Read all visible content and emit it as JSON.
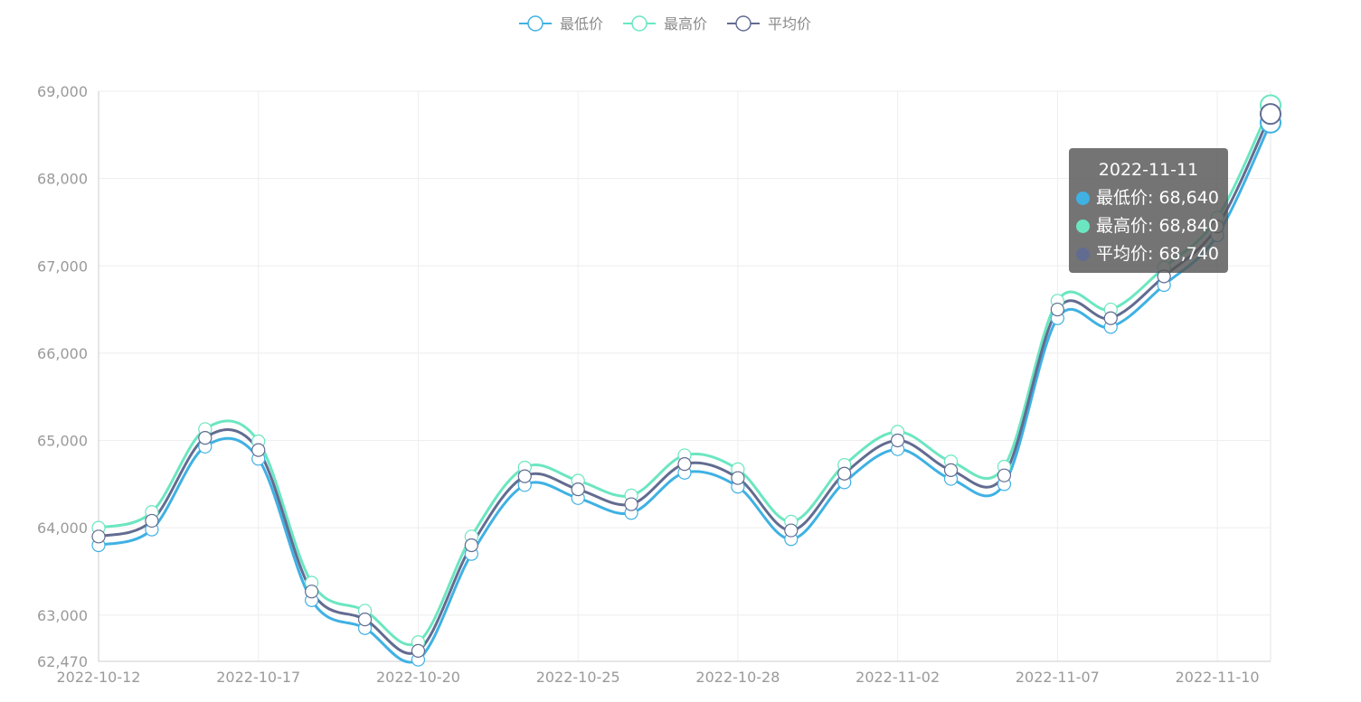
{
  "colors": {
    "min": "#3fb1e3",
    "max": "#6be6c1",
    "avg": "#626c91",
    "grid": "#eeeeee",
    "axis": "#cccccc",
    "text": "#999999"
  },
  "legend": [
    {
      "key": "min",
      "label": "最低价",
      "color": "#3fb1e3"
    },
    {
      "key": "max",
      "label": "最高价",
      "color": "#6be6c1"
    },
    {
      "key": "avg",
      "label": "平均价",
      "color": "#626c91"
    }
  ],
  "tooltip": {
    "title": "2022-11-11",
    "rows": [
      {
        "label": "最低价",
        "value": "68,640",
        "color": "#3fb1e3",
        "text": "最低价: 68,640"
      },
      {
        "label": "最高价",
        "value": "68,840",
        "color": "#6be6c1",
        "text": "最高价: 68,840"
      },
      {
        "label": "平均价",
        "value": "68,740",
        "color": "#626c91",
        "text": "平均价: 68,740"
      }
    ]
  },
  "chart_data": {
    "type": "line",
    "smooth": true,
    "title": "",
    "xlabel": "",
    "ylabel": "",
    "legend_position": "top-center",
    "grid": true,
    "ylim": [
      62470,
      69000
    ],
    "y_ticks": [
      "62,470",
      "63,000",
      "64,000",
      "65,000",
      "66,000",
      "67,000",
      "68,000",
      "69,000"
    ],
    "y_tick_values": [
      62470,
      63000,
      64000,
      65000,
      66000,
      67000,
      68000,
      69000
    ],
    "x_tick_labels": [
      "2022-10-12",
      "2022-10-17",
      "2022-10-20",
      "2022-10-25",
      "2022-10-28",
      "2022-11-02",
      "2022-11-07",
      "2022-11-10"
    ],
    "x_tick_indices": [
      0,
      3,
      6,
      9,
      12,
      15,
      18,
      21
    ],
    "x_count": 23,
    "series": [
      {
        "name": "最低价",
        "key": "min",
        "values": [
          63800,
          63980,
          64930,
          64790,
          63170,
          62850,
          62490,
          63700,
          64490,
          64340,
          64170,
          64630,
          64470,
          63870,
          64520,
          64900,
          64560,
          64500,
          66400,
          66300,
          66780,
          67350,
          68640
        ]
      },
      {
        "name": "最高价",
        "key": "max",
        "values": [
          64000,
          64180,
          65130,
          64990,
          63370,
          63050,
          62690,
          63900,
          64690,
          64540,
          64370,
          64830,
          64670,
          64070,
          64720,
          65100,
          64760,
          64700,
          66600,
          66500,
          66980,
          67550,
          68840
        ]
      },
      {
        "name": "平均价",
        "key": "avg",
        "values": [
          63900,
          64080,
          65030,
          64890,
          63270,
          62950,
          62590,
          63800,
          64590,
          64440,
          64270,
          64730,
          64570,
          63970,
          64620,
          65000,
          64660,
          64600,
          66500,
          66400,
          66880,
          67450,
          68740
        ]
      }
    ],
    "highlight_index": 22
  }
}
